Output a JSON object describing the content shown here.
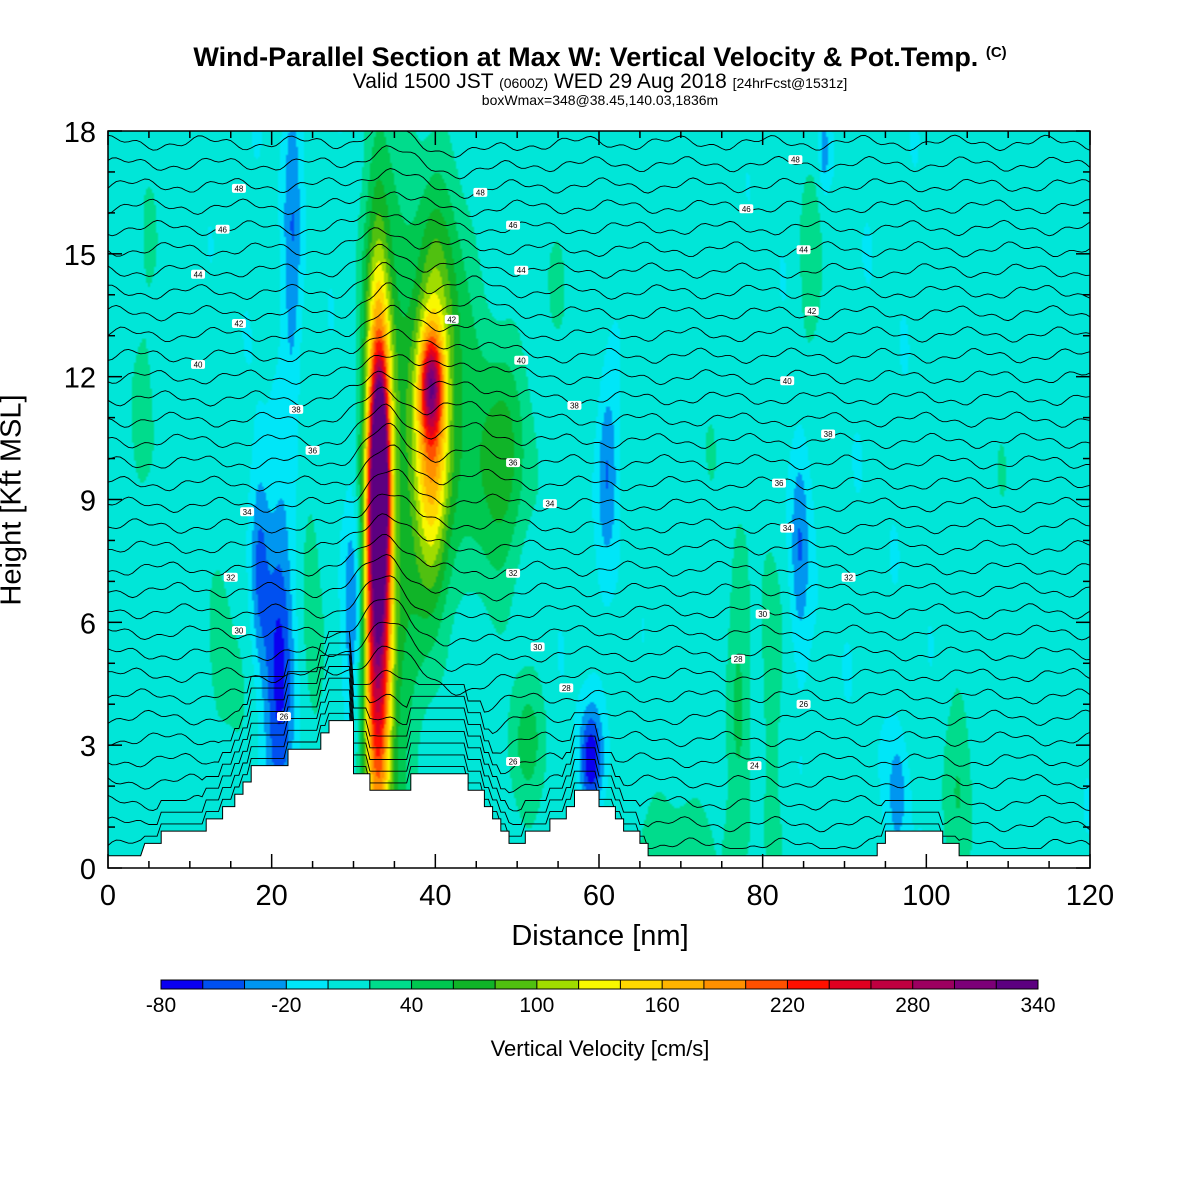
{
  "header": {
    "title_main": "Wind-Parallel Section at Max W: Vertical Velocity & Pot.Temp.",
    "title_mark": "(C)",
    "subtitle_a": "Valid 1500 JST",
    "subtitle_b": "(0600Z)",
    "subtitle_c": "WED 29 Aug 2018",
    "subtitle_d": "[24hrFcst@1531z]",
    "subtitle2": "boxWmax=348@38.45,140.03,1836m"
  },
  "chart_data": {
    "type": "heatmap",
    "title": "Wind-Parallel Section at Max W: Vertical Velocity & Pot.Temp.",
    "xlabel": "Distance [nm]",
    "ylabel": "Height [Kft MSL]",
    "xlim": [
      0,
      120
    ],
    "ylim": [
      0,
      18
    ],
    "x_ticks": [
      0,
      20,
      40,
      60,
      80,
      100,
      120
    ],
    "y_ticks": [
      0,
      3,
      6,
      9,
      12,
      15,
      18
    ],
    "colorbar": {
      "label": "Vertical Velocity [cm/s]",
      "tick_labels": [
        "-80",
        "-20",
        "40",
        "100",
        "160",
        "220",
        "280",
        "340"
      ],
      "levels": [
        -80,
        -60,
        -40,
        -20,
        0,
        20,
        40,
        60,
        80,
        100,
        120,
        140,
        160,
        180,
        200,
        220,
        240,
        260,
        280,
        300,
        320,
        340
      ],
      "colors": [
        "#0a00f0",
        "#0050f0",
        "#0096f0",
        "#00e6f8",
        "#00e6d8",
        "#00dc8c",
        "#00c850",
        "#10b428",
        "#50c010",
        "#a0dc00",
        "#f8f800",
        "#ffd800",
        "#ffb400",
        "#ff9000",
        "#ff5000",
        "#ff1000",
        "#e00020",
        "#c00040",
        "#9c0060",
        "#7c0078",
        "#5c0080"
      ]
    },
    "background_color": "#00e6f8",
    "terrain": [
      [
        0,
        0.3
      ],
      [
        4,
        0.3
      ],
      [
        4.5,
        0.6
      ],
      [
        6.5,
        0.6
      ],
      [
        6.5,
        0.9
      ],
      [
        12,
        0.9
      ],
      [
        12,
        1.2
      ],
      [
        14,
        1.2
      ],
      [
        14,
        1.5
      ],
      [
        15.5,
        1.5
      ],
      [
        15.5,
        1.8
      ],
      [
        16.5,
        1.8
      ],
      [
        16.5,
        2.1
      ],
      [
        17.5,
        2.1
      ],
      [
        17.5,
        2.5
      ],
      [
        22,
        2.5
      ],
      [
        22,
        2.9
      ],
      [
        26,
        2.9
      ],
      [
        26,
        3.3
      ],
      [
        27,
        3.3
      ],
      [
        27,
        3.6
      ],
      [
        30,
        3.6
      ],
      [
        30,
        2.3
      ],
      [
        32,
        2.3
      ],
      [
        32,
        1.9
      ],
      [
        37,
        1.9
      ],
      [
        37,
        2.3
      ],
      [
        40,
        2.3
      ],
      [
        40,
        2.3
      ],
      [
        44,
        2.3
      ],
      [
        44,
        1.9
      ],
      [
        46,
        1.9
      ],
      [
        46,
        1.5
      ],
      [
        47,
        1.5
      ],
      [
        47,
        1.2
      ],
      [
        48,
        1.2
      ],
      [
        48,
        0.9
      ],
      [
        49,
        0.9
      ],
      [
        49,
        0.6
      ],
      [
        51,
        0.6
      ],
      [
        51,
        0.9
      ],
      [
        54,
        0.9
      ],
      [
        54,
        1.2
      ],
      [
        56,
        1.2
      ],
      [
        56,
        1.5
      ],
      [
        57,
        1.5
      ],
      [
        57,
        1.9
      ],
      [
        60,
        1.9
      ],
      [
        60,
        1.5
      ],
      [
        62,
        1.5
      ],
      [
        62,
        1.2
      ],
      [
        63,
        1.2
      ],
      [
        63,
        0.9
      ],
      [
        65,
        0.9
      ],
      [
        65,
        0.6
      ],
      [
        66,
        0.6
      ],
      [
        66,
        0.3
      ],
      [
        67,
        0.3
      ],
      [
        67,
        0.3
      ],
      [
        94,
        0.3
      ],
      [
        94,
        0.6
      ],
      [
        95,
        0.6
      ],
      [
        95,
        0.9
      ],
      [
        102,
        0.9
      ],
      [
        102,
        0.6
      ],
      [
        104,
        0.6
      ],
      [
        104,
        0.3
      ],
      [
        120,
        0.3
      ]
    ],
    "velocity_features": [
      {
        "x": 33,
        "y": 7.5,
        "sx": 1.2,
        "sy": 5.0,
        "w": 330
      },
      {
        "x": 33.2,
        "y": 9.5,
        "sx": 0.6,
        "sy": 1.5,
        "w": 320
      },
      {
        "x": 39.5,
        "y": 10.3,
        "sx": 1.6,
        "sy": 2.8,
        "w": 150
      },
      {
        "x": 39.5,
        "y": 11.8,
        "sx": 0.9,
        "sy": 0.8,
        "w": 140
      },
      {
        "x": 47.5,
        "y": 9.8,
        "sx": 2.6,
        "sy": 2.0,
        "w": 70
      },
      {
        "x": 36,
        "y": 8,
        "sx": 1.4,
        "sy": 7,
        "w": 45
      },
      {
        "x": 41,
        "y": 13,
        "sx": 2.5,
        "sy": 3,
        "w": 60
      },
      {
        "x": 21,
        "y": 4.5,
        "sx": 1.3,
        "sy": 3.0,
        "w": -70
      },
      {
        "x": 18.5,
        "y": 7.5,
        "sx": 0.8,
        "sy": 1.8,
        "w": -50
      },
      {
        "x": 30,
        "y": 6.5,
        "sx": 0.9,
        "sy": 2.0,
        "w": -45
      },
      {
        "x": 22.5,
        "y": 15.5,
        "sx": 0.8,
        "sy": 3.0,
        "w": -40
      },
      {
        "x": 59,
        "y": 2.6,
        "sx": 1.0,
        "sy": 0.9,
        "w": -80
      },
      {
        "x": 61,
        "y": 9.8,
        "sx": 0.9,
        "sy": 1.5,
        "w": -45
      },
      {
        "x": 84.5,
        "y": 8.0,
        "sx": 0.8,
        "sy": 1.8,
        "w": -45
      },
      {
        "x": 96.5,
        "y": 1.8,
        "sx": 0.8,
        "sy": 1.0,
        "w": -40
      },
      {
        "x": 87.5,
        "y": 17.5,
        "sx": 0.4,
        "sy": 0.6,
        "w": -40
      },
      {
        "x": 51,
        "y": 3,
        "sx": 1.6,
        "sy": 1.2,
        "w": 45
      },
      {
        "x": 25,
        "y": 6,
        "sx": 1.2,
        "sy": 3.5,
        "w": 25
      },
      {
        "x": 14.5,
        "y": 4,
        "sx": 2.0,
        "sy": 3.5,
        "w": 20
      },
      {
        "x": 77,
        "y": 4.5,
        "sx": 1.0,
        "sy": 2.5,
        "w": 35
      },
      {
        "x": 81,
        "y": 5,
        "sx": 1.0,
        "sy": 2.5,
        "w": 30
      },
      {
        "x": 104,
        "y": 2,
        "sx": 1.2,
        "sy": 1.8,
        "w": 35
      },
      {
        "x": 86,
        "y": 14.5,
        "sx": 1.2,
        "sy": 2.0,
        "w": 25
      },
      {
        "x": 72,
        "y": 10,
        "sx": 3.0,
        "sy": 6.0,
        "w": 12
      },
      {
        "x": 5,
        "y": 12,
        "sx": 3.0,
        "sy": 5.0,
        "w": 15
      },
      {
        "x": 110,
        "y": 10,
        "sx": 4.0,
        "sy": 6.0,
        "w": 10
      },
      {
        "x": 55,
        "y": 15,
        "sx": 4.0,
        "sy": 3.0,
        "w": 12
      },
      {
        "x": 68,
        "y": 0.5,
        "sx": 10.0,
        "sy": 1.0,
        "w": 20
      }
    ],
    "theta_labels": [
      {
        "text": "48",
        "x": 16,
        "y": 16.6
      },
      {
        "text": "46",
        "x": 14,
        "y": 15.6
      },
      {
        "text": "44",
        "x": 11,
        "y": 14.5
      },
      {
        "text": "42",
        "x": 16,
        "y": 13.3
      },
      {
        "text": "40",
        "x": 11,
        "y": 12.3
      },
      {
        "text": "38",
        "x": 23,
        "y": 11.2
      },
      {
        "text": "36",
        "x": 25,
        "y": 10.2
      },
      {
        "text": "34",
        "x": 17,
        "y": 8.7
      },
      {
        "text": "32",
        "x": 15,
        "y": 7.1
      },
      {
        "text": "30",
        "x": 16,
        "y": 5.8
      },
      {
        "text": "26",
        "x": 21.5,
        "y": 3.7
      },
      {
        "text": "48",
        "x": 45.5,
        "y": 16.5
      },
      {
        "text": "46",
        "x": 49.5,
        "y": 15.7
      },
      {
        "text": "44",
        "x": 50.5,
        "y": 14.6
      },
      {
        "text": "42",
        "x": 42,
        "y": 13.4
      },
      {
        "text": "40",
        "x": 50.5,
        "y": 12.4
      },
      {
        "text": "38",
        "x": 57,
        "y": 11.3
      },
      {
        "text": "36",
        "x": 49.5,
        "y": 9.9
      },
      {
        "text": "34",
        "x": 54,
        "y": 8.9
      },
      {
        "text": "32",
        "x": 49.5,
        "y": 7.2
      },
      {
        "text": "30",
        "x": 52.5,
        "y": 5.4
      },
      {
        "text": "28",
        "x": 56,
        "y": 4.4
      },
      {
        "text": "26",
        "x": 49.5,
        "y": 2.6
      },
      {
        "text": "48",
        "x": 84,
        "y": 17.3
      },
      {
        "text": "46",
        "x": 78,
        "y": 16.1
      },
      {
        "text": "44",
        "x": 85,
        "y": 15.1
      },
      {
        "text": "42",
        "x": 86,
        "y": 13.6
      },
      {
        "text": "40",
        "x": 83,
        "y": 11.9
      },
      {
        "text": "38",
        "x": 88,
        "y": 10.6
      },
      {
        "text": "36",
        "x": 82,
        "y": 9.4
      },
      {
        "text": "34",
        "x": 83,
        "y": 8.3
      },
      {
        "text": "32",
        "x": 90.5,
        "y": 7.1
      },
      {
        "text": "30",
        "x": 80,
        "y": 6.2
      },
      {
        "text": "28",
        "x": 77,
        "y": 5.1
      },
      {
        "text": "26",
        "x": 85,
        "y": 4.0
      },
      {
        "text": "24",
        "x": 79,
        "y": 2.5
      }
    ]
  }
}
